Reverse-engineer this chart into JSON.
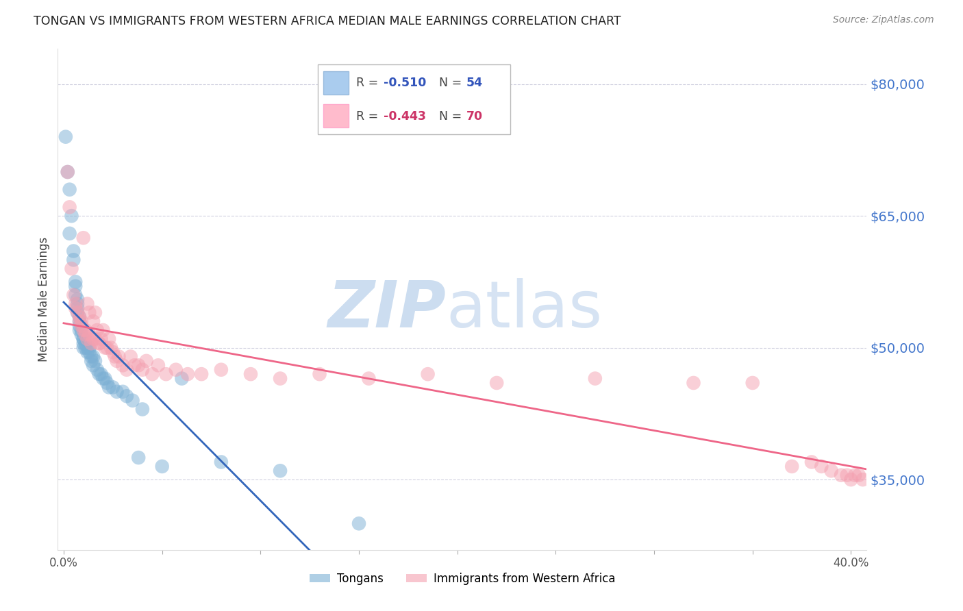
{
  "title": "TONGAN VS IMMIGRANTS FROM WESTERN AFRICA MEDIAN MALE EARNINGS CORRELATION CHART",
  "source": "Source: ZipAtlas.com",
  "ylabel": "Median Male Earnings",
  "y_ticks": [
    35000,
    50000,
    65000,
    80000
  ],
  "y_tick_labels": [
    "$35,000",
    "$50,000",
    "$65,000",
    "$80,000"
  ],
  "y_min": 27000,
  "y_max": 84000,
  "x_min": -0.003,
  "x_max": 0.408,
  "tongan_R": "-0.510",
  "tongan_N": "54",
  "western_africa_R": "-0.443",
  "western_africa_N": "70",
  "blue_color": "#7BAFD4",
  "pink_color": "#F4A0B0",
  "blue_line_color": "#3366BB",
  "pink_line_color": "#EE6688",
  "dashed_line_color": "#AABBCC",
  "tongan_x": [
    0.001,
    0.002,
    0.003,
    0.003,
    0.004,
    0.005,
    0.005,
    0.006,
    0.006,
    0.006,
    0.007,
    0.007,
    0.007,
    0.007,
    0.008,
    0.008,
    0.008,
    0.008,
    0.009,
    0.009,
    0.01,
    0.01,
    0.01,
    0.01,
    0.011,
    0.011,
    0.012,
    0.012,
    0.013,
    0.013,
    0.014,
    0.014,
    0.015,
    0.015,
    0.016,
    0.017,
    0.018,
    0.019,
    0.02,
    0.021,
    0.022,
    0.023,
    0.025,
    0.027,
    0.03,
    0.032,
    0.035,
    0.038,
    0.04,
    0.05,
    0.06,
    0.08,
    0.11,
    0.15
  ],
  "tongan_y": [
    74000,
    70000,
    63000,
    68000,
    65000,
    61000,
    60000,
    57500,
    57000,
    56000,
    55500,
    55000,
    54500,
    54000,
    53500,
    53000,
    52500,
    52000,
    52000,
    51500,
    51000,
    51000,
    50500,
    50000,
    50500,
    50000,
    50000,
    49500,
    50000,
    49500,
    49000,
    48500,
    49000,
    48000,
    48500,
    47500,
    47000,
    47000,
    46500,
    46500,
    46000,
    45500,
    45500,
    45000,
    45000,
    44500,
    44000,
    37500,
    43000,
    36500,
    46500,
    37000,
    36000,
    30000
  ],
  "western_africa_x": [
    0.002,
    0.003,
    0.004,
    0.005,
    0.006,
    0.006,
    0.007,
    0.008,
    0.008,
    0.009,
    0.009,
    0.01,
    0.01,
    0.011,
    0.011,
    0.012,
    0.012,
    0.013,
    0.013,
    0.014,
    0.015,
    0.015,
    0.016,
    0.016,
    0.017,
    0.018,
    0.018,
    0.019,
    0.02,
    0.021,
    0.022,
    0.023,
    0.024,
    0.025,
    0.026,
    0.027,
    0.028,
    0.03,
    0.032,
    0.034,
    0.036,
    0.038,
    0.04,
    0.042,
    0.045,
    0.048,
    0.052,
    0.057,
    0.063,
    0.07,
    0.08,
    0.095,
    0.11,
    0.13,
    0.155,
    0.185,
    0.22,
    0.27,
    0.32,
    0.35,
    0.37,
    0.38,
    0.385,
    0.39,
    0.395,
    0.398,
    0.4,
    0.402,
    0.404,
    0.406
  ],
  "western_africa_y": [
    70000,
    66000,
    59000,
    56000,
    55000,
    54500,
    54000,
    53500,
    53000,
    53000,
    52500,
    52000,
    62500,
    52000,
    51500,
    55000,
    51000,
    54000,
    51500,
    50500,
    53000,
    51000,
    54000,
    51000,
    52000,
    50500,
    50500,
    51000,
    52000,
    50000,
    50000,
    51000,
    50000,
    49500,
    49000,
    48500,
    49000,
    48000,
    47500,
    49000,
    48000,
    48000,
    47500,
    48500,
    47000,
    48000,
    47000,
    47500,
    47000,
    47000,
    47500,
    47000,
    46500,
    47000,
    46500,
    47000,
    46000,
    46500,
    46000,
    46000,
    36500,
    37000,
    36500,
    36000,
    35500,
    35500,
    35000,
    35500,
    35500,
    35000
  ]
}
